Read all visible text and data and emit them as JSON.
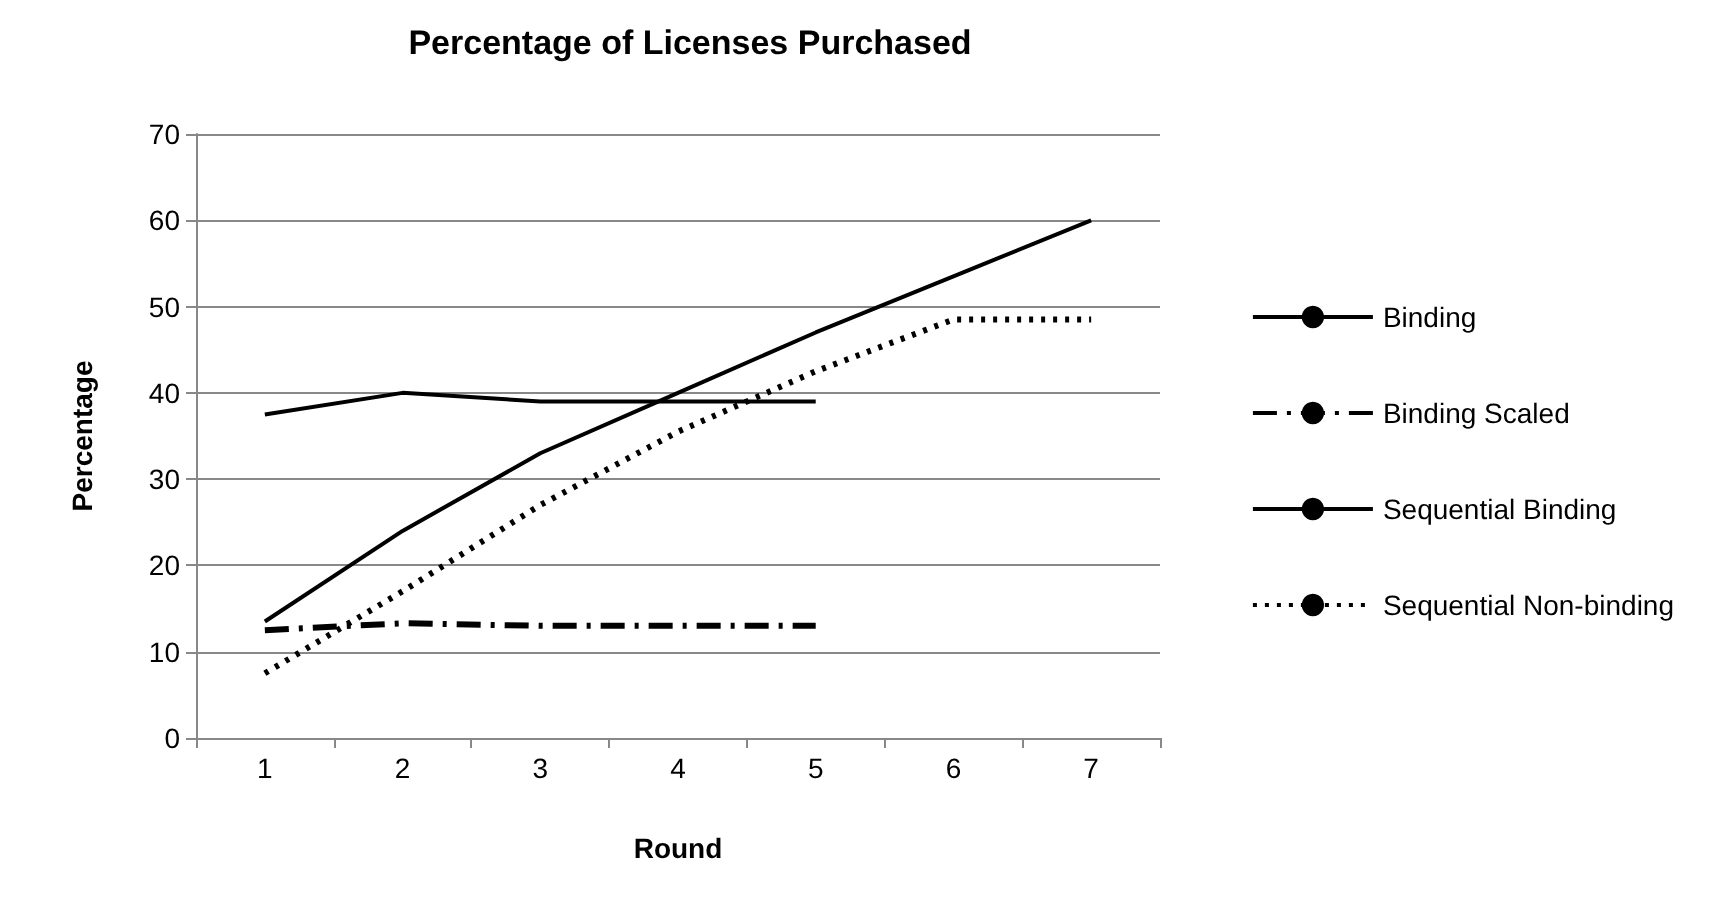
{
  "chart_data": {
    "type": "line",
    "title": "Percentage of Licenses Purchased",
    "xlabel": "Round",
    "ylabel": "Percentage",
    "categories": [
      "1",
      "2",
      "3",
      "4",
      "5",
      "6",
      "7"
    ],
    "series": [
      {
        "name": "Binding",
        "color": "#000000",
        "line_style": "solid",
        "values": [
          37.5,
          40,
          39,
          39,
          39,
          null,
          null
        ]
      },
      {
        "name": "Binding Scaled",
        "color": "#000000",
        "line_style": "dashed",
        "values": [
          12.5,
          13.3,
          13,
          13,
          13,
          null,
          null
        ]
      },
      {
        "name": "Sequential Binding",
        "color": "#000000",
        "line_style": "solid",
        "values": [
          13.5,
          24,
          33,
          40,
          47,
          53.5,
          60
        ]
      },
      {
        "name": "Sequential Non-binding",
        "color": "#000000",
        "line_style": "dotted",
        "values": [
          7.5,
          17,
          27,
          35.5,
          42.5,
          48.5,
          48.5
        ]
      }
    ],
    "ylim": [
      0,
      70
    ],
    "yticks": [
      0,
      10,
      20,
      30,
      40,
      50,
      60,
      70
    ],
    "grid": "y",
    "legend": "right",
    "marker": "none"
  }
}
